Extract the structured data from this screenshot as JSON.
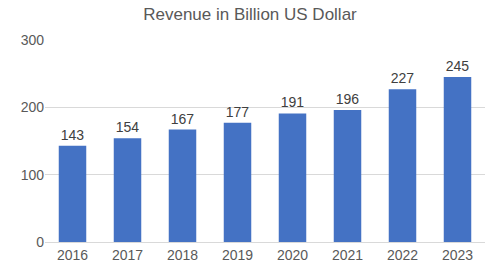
{
  "chart_data": {
    "type": "bar",
    "title": "Revenue in Billion US Dollar",
    "categories": [
      "2016",
      "2017",
      "2018",
      "2019",
      "2020",
      "2021",
      "2022",
      "2023"
    ],
    "values": [
      143,
      154,
      167,
      177,
      191,
      196,
      227,
      245
    ],
    "color": "#4472c4",
    "ylim": [
      0,
      300
    ],
    "yticks": [
      0,
      100,
      200,
      300
    ],
    "grid": true,
    "data_labels": true
  }
}
